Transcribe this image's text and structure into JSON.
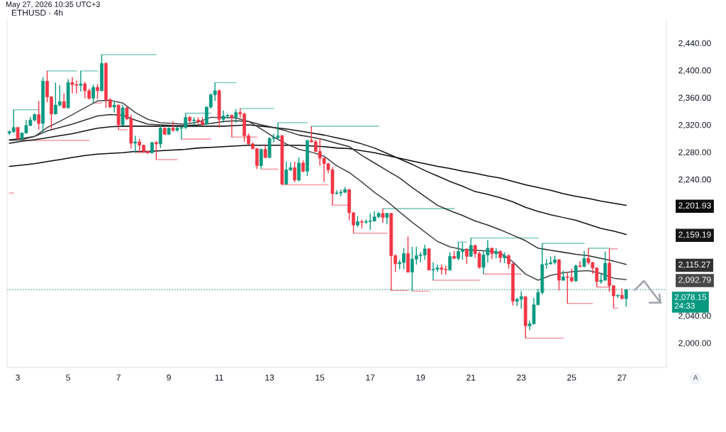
{
  "chart_data": {
    "type": "candlestick",
    "title": "ETHUSD · 4h",
    "annotations": [
      "May 27, 2026 10:35 UTC+3",
      "A"
    ],
    "xlim": [
      "2026-05-02T16:48",
      "2026-05-28T21:24"
    ],
    "ylim": [
      1964,
      2474
    ],
    "xticks": [
      {
        "value": "2026-05-03T03:00",
        "label": "3"
      },
      {
        "value": "2026-05-05T03:00",
        "label": "5"
      },
      {
        "value": "2026-05-07T03:00",
        "label": "7"
      },
      {
        "value": "2026-05-09T03:00",
        "label": "9"
      },
      {
        "value": "2026-05-11T03:00",
        "label": "11"
      },
      {
        "value": "2026-05-13T03:00",
        "label": "13"
      },
      {
        "value": "2026-05-15T03:00",
        "label": "15"
      },
      {
        "value": "2026-05-17T03:00",
        "label": "17"
      },
      {
        "value": "2026-05-19T03:00",
        "label": "19"
      },
      {
        "value": "2026-05-21T03:00",
        "label": "21"
      },
      {
        "value": "2026-05-23T03:00",
        "label": "23"
      },
      {
        "value": "2026-05-25T03:00",
        "label": "25"
      },
      {
        "value": "2026-05-27T03:00",
        "label": "27"
      }
    ],
    "yticks": [
      {
        "value": 2440,
        "label": "2,440.00"
      },
      {
        "value": 2400,
        "label": "2,400.00"
      },
      {
        "value": 2360,
        "label": "2,360.00"
      },
      {
        "value": 2320,
        "label": "2,320.00"
      },
      {
        "value": 2280,
        "label": "2,280.00"
      },
      {
        "value": 2240,
        "label": "2,240.00"
      },
      {
        "value": 2201.93,
        "label": "2,201.93"
      },
      {
        "value": 2159.19,
        "label": "2,159.19"
      },
      {
        "value": 2115.27,
        "label": "2,115.27"
      },
      {
        "value": 2092.79,
        "label": "2,092.79"
      },
      {
        "value": 2040,
        "label": "2,040.00"
      },
      {
        "value": 2000,
        "label": "2,000.00"
      }
    ],
    "x": [
      "2026-05-02T19:00",
      "2026-05-03T07:00",
      "2026-05-03T19:00",
      "2026-05-04T07:00",
      "2026-05-04T19:00",
      "2026-05-05T07:00",
      "2026-05-05T19:00",
      "2026-05-06T07:00",
      "2026-05-06T19:00",
      "2026-05-07T07:00",
      "2026-05-07T19:00",
      "2026-05-08T07:00",
      "2026-05-08T19:00",
      "2026-05-09T07:00",
      "2026-05-09T19:00",
      "2026-05-10T07:00",
      "2026-05-10T19:00",
      "2026-05-11T07:00",
      "2026-05-11T19:00",
      "2026-05-12T07:00",
      "2026-05-12T19:00",
      "2026-05-13T07:00",
      "2026-05-13T19:00",
      "2026-05-14T07:00",
      "2026-05-14T19:00",
      "2026-05-15T07:00",
      "2026-05-15T19:00",
      "2026-05-16T07:00",
      "2026-05-16T19:00",
      "2026-05-17T07:00",
      "2026-05-17T19:00",
      "2026-05-18T07:00",
      "2026-05-18T19:00",
      "2026-05-19T07:00",
      "2026-05-19T19:00",
      "2026-05-20T07:00",
      "2026-05-20T19:00",
      "2026-05-21T07:00",
      "2026-05-21T19:00",
      "2026-05-22T07:00",
      "2026-05-22T19:00",
      "2026-05-23T07:00",
      "2026-05-23T19:00",
      "2026-05-24T07:00",
      "2026-05-24T19:00",
      "2026-05-25T07:00",
      "2026-05-25T19:00",
      "2026-05-26T07:00",
      "2026-05-26T19:00",
      "2026-05-27T07:00"
    ],
    "series": [
      {
        "type": "line",
        "color": "#84ccc0",
        "x": [
          "2026-05-02T23:00",
          "2026-05-03T23:00"
        ],
        "values": [
          2342,
          2342
        ]
      },
      {
        "type": "line",
        "color": "#84ccc0",
        "x": [
          "2026-05-04T07:00",
          "2026-05-05T11:00"
        ],
        "values": [
          2399,
          2399
        ]
      },
      {
        "type": "line",
        "color": "#84ccc0",
        "x": [
          "2026-05-05T15:00",
          "2026-05-06T07:00"
        ],
        "values": [
          2399,
          2399
        ]
      },
      {
        "type": "line",
        "color": "#84ccc0",
        "x": [
          "2026-05-06T11:00",
          "2026-05-08T15:00"
        ],
        "values": [
          2423,
          2423
        ]
      },
      {
        "type": "line",
        "color": "#84ccc0",
        "x": [
          "2026-05-09T19:00",
          "2026-05-10T19:00"
        ],
        "values": [
          2337,
          2337
        ]
      },
      {
        "type": "line",
        "color": "#84ccc0",
        "x": [
          "2026-05-10T23:00",
          "2026-05-11T19:00"
        ],
        "values": [
          2382,
          2382
        ]
      },
      {
        "type": "line",
        "color": "#84ccc0",
        "x": [
          "2026-05-11T23:00",
          "2026-05-13T07:00"
        ],
        "values": [
          2344,
          2344
        ]
      },
      {
        "type": "line",
        "color": "#84ccc0",
        "x": [
          "2026-05-13T11:00",
          "2026-05-14T15:00"
        ],
        "values": [
          2323,
          2323
        ]
      },
      {
        "type": "line",
        "color": "#84ccc0",
        "x": [
          "2026-05-14T19:00",
          "2026-05-17T11:00"
        ],
        "values": [
          2318,
          2318
        ]
      },
      {
        "type": "line",
        "color": "#84ccc0",
        "x": [
          "2026-05-17T15:00",
          "2026-05-20T11:00"
        ],
        "values": [
          2197,
          2197
        ]
      },
      {
        "type": "line",
        "color": "#84ccc0",
        "x": [
          "2026-05-20T15:00",
          "2026-05-20T23:00"
        ],
        "values": [
          2148,
          2148
        ]
      },
      {
        "type": "line",
        "color": "#84ccc0",
        "x": [
          "2026-05-21T03:00",
          "2026-05-23T19:00"
        ],
        "values": [
          2154,
          2154
        ]
      },
      {
        "type": "line",
        "color": "#84ccc0",
        "x": [
          "2026-05-23T23:00",
          "2026-05-25T15:00"
        ],
        "values": [
          2146,
          2146
        ]
      },
      {
        "type": "line",
        "color": "#84ccc0",
        "x": [
          "2026-05-25T19:00",
          "2026-05-26T15:00"
        ],
        "values": [
          2139,
          2139
        ]
      },
      {
        "type": "line",
        "color": "#f79aa2",
        "x": [
          "2026-05-02T19:00",
          "2026-05-02T23:00"
        ],
        "values": [
          2220,
          2220
        ]
      },
      {
        "type": "line",
        "color": "#f79aa2",
        "x": [
          "2026-05-03T07:00",
          "2026-05-05T23:00"
        ],
        "values": [
          2297,
          2297
        ]
      },
      {
        "type": "line",
        "color": "#f79aa2",
        "x": [
          "2026-05-06T03:00",
          "2026-05-06T11:00"
        ],
        "values": [
          2352,
          2352
        ]
      },
      {
        "type": "line",
        "color": "#f79aa2",
        "x": [
          "2026-05-07T03:00",
          "2026-05-07T11:00"
        ],
        "values": [
          2313,
          2313
        ]
      },
      {
        "type": "line",
        "color": "#f79aa2",
        "x": [
          "2026-05-07T19:00",
          "2026-05-08T11:00"
        ],
        "values": [
          2279,
          2279
        ]
      },
      {
        "type": "line",
        "color": "#f79aa2",
        "x": [
          "2026-05-08T15:00",
          "2026-05-09T11:00"
        ],
        "values": [
          2269,
          2269
        ]
      },
      {
        "type": "line",
        "color": "#f79aa2",
        "x": [
          "2026-05-09T15:00",
          "2026-05-10T19:00"
        ],
        "values": [
          2299,
          2299
        ]
      },
      {
        "type": "line",
        "color": "#f79aa2",
        "x": [
          "2026-05-11T15:00",
          "2026-05-12T15:00"
        ],
        "values": [
          2302,
          2302
        ]
      },
      {
        "type": "line",
        "color": "#f79aa2",
        "x": [
          "2026-05-12T19:00",
          "2026-05-13T11:00"
        ],
        "values": [
          2255,
          2255
        ]
      },
      {
        "type": "line",
        "color": "#f79aa2",
        "x": [
          "2026-05-13T15:00",
          "2026-05-15T11:00"
        ],
        "values": [
          2232,
          2232
        ]
      },
      {
        "type": "line",
        "color": "#f79aa2",
        "x": [
          "2026-05-15T15:00",
          "2026-05-16T07:00"
        ],
        "values": [
          2202,
          2202
        ]
      },
      {
        "type": "line",
        "color": "#f79aa2",
        "x": [
          "2026-05-16T11:00",
          "2026-05-17T19:00"
        ],
        "values": [
          2161,
          2161
        ]
      },
      {
        "type": "line",
        "color": "#f79aa2",
        "x": [
          "2026-05-17T23:00",
          "2026-05-18T15:00"
        ],
        "values": [
          2077,
          2077
        ]
      },
      {
        "type": "line",
        "color": "#f79aa2",
        "x": [
          "2026-05-18T19:00",
          "2026-05-19T11:00"
        ],
        "values": [
          2076,
          2076
        ]
      },
      {
        "type": "line",
        "color": "#f79aa2",
        "x": [
          "2026-05-19T15:00",
          "2026-05-21T11:00"
        ],
        "values": [
          2092,
          2092
        ]
      },
      {
        "type": "line",
        "color": "#f79aa2",
        "x": [
          "2026-05-21T15:00",
          "2026-05-23T03:00"
        ],
        "values": [
          2101,
          2101
        ]
      },
      {
        "type": "line",
        "color": "#f79aa2",
        "x": [
          "2026-05-23T07:00",
          "2026-05-24T19:00"
        ],
        "values": [
          2007,
          2007
        ]
      },
      {
        "type": "line",
        "color": "#f79aa2",
        "x": [
          "2026-05-24T23:00",
          "2026-05-25T23:00"
        ],
        "values": [
          2058,
          2058
        ]
      },
      {
        "type": "line",
        "color": "#f79aa2",
        "x": [
          "2026-05-26T03:00",
          "2026-05-26T15:00"
        ],
        "values": [
          2082,
          2082
        ]
      },
      {
        "type": "line",
        "color": "#f79aa2",
        "x": [
          "2026-05-26T15:00",
          "2026-05-26T23:00"
        ],
        "values": [
          2138,
          2138
        ]
      },
      {
        "type": "line",
        "color": "#f79aa2",
        "x": [
          "2026-05-26T19:00",
          "2026-05-26T23:00"
        ],
        "values": [
          2051,
          2051
        ]
      },
      {
        "type": "line",
        "color": "#0b0b0b",
        "values": [
          2259,
          2261,
          2263,
          2266,
          2269,
          2272,
          2275,
          2277,
          2278,
          2279,
          2281,
          2281,
          2282,
          2283,
          2284,
          2286,
          2287,
          2288,
          2289,
          2290,
          2290,
          2290,
          2290,
          2290,
          2289,
          2288,
          2286,
          2285,
          2282,
          2279,
          2275,
          2271,
          2267,
          2263,
          2259,
          2256,
          2252,
          2249,
          2245,
          2242,
          2237,
          2232,
          2228,
          2224,
          2219,
          2215,
          2212,
          2208,
          2205,
          2201.93
        ]
      },
      {
        "type": "line",
        "color": "#141414",
        "values": [
          2293,
          2296,
          2298,
          2301,
          2304,
          2307,
          2311,
          2315,
          2317,
          2318,
          2318,
          2318,
          2318,
          2318,
          2318,
          2318,
          2318,
          2318,
          2319,
          2320,
          2318,
          2316,
          2314,
          2311,
          2308,
          2305,
          2301,
          2297,
          2292,
          2286,
          2278,
          2270,
          2262,
          2253,
          2245,
          2237,
          2230,
          2222,
          2218,
          2213,
          2207,
          2199,
          2193,
          2188,
          2184,
          2180,
          2174,
          2168,
          2164,
          2159.19
        ]
      },
      {
        "type": "line",
        "color": "#303030",
        "values": [
          2298,
          2300,
          2303,
          2311,
          2316,
          2321,
          2327,
          2333,
          2335,
          2334,
          2327,
          2321,
          2320,
          2319,
          2319,
          2320,
          2322,
          2325,
          2326,
          2325,
          2320,
          2316,
          2311,
          2305,
          2302,
          2298,
          2293,
          2288,
          2275,
          2264,
          2253,
          2242,
          2228,
          2215,
          2202,
          2194,
          2187,
          2179,
          2173,
          2166,
          2158,
          2150,
          2139,
          2136,
          2133,
          2130,
          2128,
          2124,
          2120,
          2115.27
        ]
      },
      {
        "type": "line",
        "color": "#474747",
        "values": [
          2297,
          2298,
          2303,
          2316,
          2325,
          2335,
          2345,
          2355,
          2356,
          2352,
          2338,
          2328,
          2323,
          2322,
          2321,
          2324,
          2331,
          2331,
          2330,
          2325,
          2314,
          2302,
          2292,
          2284,
          2280,
          2274,
          2260,
          2250,
          2236,
          2221,
          2208,
          2192,
          2177,
          2163,
          2149,
          2141,
          2137,
          2136,
          2135,
          2132,
          2119,
          2101,
          2092,
          2099,
          2103,
          2105,
          2106,
          2102,
          2095,
          2092.79
        ]
      },
      {
        "x": [
          "2026-05-02T19:00",
          "2026-05-02T23:00",
          "2026-05-03T03:00",
          "2026-05-03T07:00",
          "2026-05-03T11:00",
          "2026-05-03T15:00",
          "2026-05-03T19:00",
          "2026-05-03T23:00",
          "2026-05-04T03:00",
          "2026-05-04T07:00",
          "2026-05-04T11:00",
          "2026-05-04T15:00",
          "2026-05-04T19:00",
          "2026-05-04T23:00",
          "2026-05-05T03:00",
          "2026-05-05T07:00",
          "2026-05-05T11:00",
          "2026-05-05T15:00",
          "2026-05-05T19:00",
          "2026-05-05T23:00",
          "2026-05-06T03:00",
          "2026-05-06T07:00",
          "2026-05-06T11:00",
          "2026-05-06T15:00",
          "2026-05-06T19:00",
          "2026-05-06T23:00",
          "2026-05-07T03:00",
          "2026-05-07T07:00",
          "2026-05-07T11:00",
          "2026-05-07T15:00",
          "2026-05-07T19:00",
          "2026-05-07T23:00",
          "2026-05-08T03:00",
          "2026-05-08T07:00",
          "2026-05-08T11:00",
          "2026-05-08T15:00",
          "2026-05-08T19:00",
          "2026-05-08T23:00",
          "2026-05-09T03:00",
          "2026-05-09T07:00",
          "2026-05-09T11:00",
          "2026-05-09T15:00",
          "2026-05-09T19:00",
          "2026-05-09T23:00",
          "2026-05-10T03:00",
          "2026-05-10T07:00",
          "2026-05-10T11:00",
          "2026-05-10T15:00",
          "2026-05-10T19:00",
          "2026-05-10T23:00",
          "2026-05-11T03:00",
          "2026-05-11T07:00",
          "2026-05-11T11:00",
          "2026-05-11T15:00",
          "2026-05-11T19:00",
          "2026-05-11T23:00",
          "2026-05-12T03:00",
          "2026-05-12T07:00",
          "2026-05-12T11:00",
          "2026-05-12T15:00",
          "2026-05-12T19:00",
          "2026-05-12T23:00",
          "2026-05-13T03:00",
          "2026-05-13T07:00",
          "2026-05-13T11:00",
          "2026-05-13T15:00",
          "2026-05-13T19:00",
          "2026-05-13T23:00",
          "2026-05-14T03:00",
          "2026-05-14T07:00",
          "2026-05-14T11:00",
          "2026-05-14T15:00",
          "2026-05-14T19:00",
          "2026-05-14T23:00",
          "2026-05-15T03:00",
          "2026-05-15T07:00",
          "2026-05-15T11:00",
          "2026-05-15T15:00",
          "2026-05-15T19:00",
          "2026-05-15T23:00",
          "2026-05-16T03:00",
          "2026-05-16T07:00",
          "2026-05-16T11:00",
          "2026-05-16T15:00",
          "2026-05-16T19:00",
          "2026-05-16T23:00",
          "2026-05-17T03:00",
          "2026-05-17T07:00",
          "2026-05-17T11:00",
          "2026-05-17T15:00",
          "2026-05-17T19:00",
          "2026-05-17T23:00",
          "2026-05-18T03:00",
          "2026-05-18T07:00",
          "2026-05-18T11:00",
          "2026-05-18T15:00",
          "2026-05-18T19:00",
          "2026-05-18T23:00",
          "2026-05-19T03:00",
          "2026-05-19T07:00",
          "2026-05-19T11:00",
          "2026-05-19T15:00",
          "2026-05-19T19:00",
          "2026-05-19T23:00",
          "2026-05-20T03:00",
          "2026-05-20T07:00",
          "2026-05-20T11:00",
          "2026-05-20T15:00",
          "2026-05-20T19:00",
          "2026-05-20T23:00",
          "2026-05-21T03:00",
          "2026-05-21T07:00",
          "2026-05-21T11:00",
          "2026-05-21T15:00",
          "2026-05-21T19:00",
          "2026-05-21T23:00",
          "2026-05-22T03:00",
          "2026-05-22T07:00",
          "2026-05-22T11:00",
          "2026-05-22T15:00",
          "2026-05-22T19:00",
          "2026-05-22T23:00",
          "2026-05-23T03:00",
          "2026-05-23T07:00",
          "2026-05-23T11:00",
          "2026-05-23T15:00",
          "2026-05-23T19:00",
          "2026-05-23T23:00",
          "2026-05-24T03:00",
          "2026-05-24T07:00",
          "2026-05-24T11:00",
          "2026-05-24T15:00",
          "2026-05-24T19:00",
          "2026-05-24T23:00",
          "2026-05-25T03:00",
          "2026-05-25T07:00",
          "2026-05-25T11:00",
          "2026-05-25T15:00",
          "2026-05-25T19:00",
          "2026-05-25T23:00",
          "2026-05-26T03:00",
          "2026-05-26T07:00",
          "2026-05-26T11:00",
          "2026-05-26T15:00",
          "2026-05-26T19:00",
          "2026-05-26T23:00",
          "2026-05-27T03:00",
          "2026-05-27T07:00"
        ],
        "ohlc": [
          [
            2308,
            2312,
            2305,
            2310
          ],
          [
            2310,
            2342,
            2308,
            2316
          ],
          [
            2316,
            2317,
            2298,
            2300
          ],
          [
            2300,
            2309,
            2297,
            2308
          ],
          [
            2308,
            2327,
            2307,
            2319
          ],
          [
            2319,
            2332,
            2318,
            2327
          ],
          [
            2327,
            2337,
            2325,
            2335
          ],
          [
            2335,
            2355,
            2313,
            2322
          ],
          [
            2322,
            2390,
            2308,
            2384
          ],
          [
            2384,
            2399,
            2353,
            2361
          ],
          [
            2361,
            2362,
            2314,
            2336
          ],
          [
            2336,
            2382,
            2335,
            2349
          ],
          [
            2349,
            2378,
            2347,
            2354
          ],
          [
            2354,
            2366,
            2344,
            2345
          ],
          [
            2345,
            2387,
            2344,
            2382
          ],
          [
            2382,
            2390,
            2366,
            2379
          ],
          [
            2379,
            2385,
            2366,
            2378
          ],
          [
            2378,
            2399,
            2369,
            2380
          ],
          [
            2380,
            2383,
            2359,
            2370
          ],
          [
            2370,
            2373,
            2357,
            2359
          ],
          [
            2359,
            2379,
            2352,
            2375
          ],
          [
            2375,
            2380,
            2358,
            2370
          ],
          [
            2370,
            2423,
            2369,
            2410
          ],
          [
            2410,
            2412,
            2345,
            2357
          ],
          [
            2357,
            2359,
            2345,
            2346
          ],
          [
            2346,
            2355,
            2338,
            2349
          ],
          [
            2349,
            2350,
            2313,
            2320
          ],
          [
            2320,
            2349,
            2319,
            2345
          ],
          [
            2345,
            2346,
            2327,
            2329
          ],
          [
            2329,
            2335,
            2285,
            2293
          ],
          [
            2293,
            2304,
            2279,
            2295
          ],
          [
            2295,
            2300,
            2280,
            2290
          ],
          [
            2290,
            2291,
            2279,
            2281
          ],
          [
            2281,
            2282,
            2278,
            2279
          ],
          [
            2279,
            2295,
            2278,
            2294
          ],
          [
            2294,
            2296,
            2269,
            2292
          ],
          [
            2292,
            2319,
            2286,
            2315
          ],
          [
            2315,
            2316,
            2305,
            2306
          ],
          [
            2306,
            2316,
            2305,
            2315
          ],
          [
            2315,
            2325,
            2310,
            2312
          ],
          [
            2312,
            2317,
            2310,
            2315
          ],
          [
            2315,
            2317,
            2299,
            2316
          ],
          [
            2316,
            2337,
            2314,
            2331
          ],
          [
            2331,
            2333,
            2323,
            2326
          ],
          [
            2326,
            2331,
            2319,
            2327
          ],
          [
            2327,
            2331,
            2321,
            2325
          ],
          [
            2325,
            2331,
            2319,
            2321
          ],
          [
            2321,
            2347,
            2320,
            2346
          ],
          [
            2346,
            2366,
            2344,
            2364
          ],
          [
            2364,
            2382,
            2355,
            2370
          ],
          [
            2370,
            2372,
            2316,
            2328
          ],
          [
            2328,
            2341,
            2323,
            2333
          ],
          [
            2333,
            2336,
            2329,
            2334
          ],
          [
            2334,
            2335,
            2302,
            2331
          ],
          [
            2331,
            2343,
            2323,
            2338
          ],
          [
            2338,
            2344,
            2330,
            2336
          ],
          [
            2336,
            2338,
            2295,
            2304
          ],
          [
            2304,
            2307,
            2291,
            2292
          ],
          [
            2292,
            2294,
            2284,
            2285
          ],
          [
            2285,
            2286,
            2255,
            2260
          ],
          [
            2260,
            2285,
            2255,
            2284
          ],
          [
            2284,
            2290,
            2271,
            2272
          ],
          [
            2272,
            2302,
            2271,
            2300
          ],
          [
            2300,
            2307,
            2294,
            2301
          ],
          [
            2301,
            2323,
            2298,
            2304
          ],
          [
            2304,
            2305,
            2232,
            2233
          ],
          [
            2233,
            2266,
            2232,
            2254
          ],
          [
            2254,
            2265,
            2252,
            2257
          ],
          [
            2257,
            2266,
            2236,
            2239
          ],
          [
            2239,
            2272,
            2237,
            2264
          ],
          [
            2264,
            2268,
            2250,
            2252
          ],
          [
            2252,
            2298,
            2245,
            2297
          ],
          [
            2297,
            2318,
            2294,
            2295
          ],
          [
            2295,
            2298,
            2280,
            2281
          ],
          [
            2281,
            2300,
            2260,
            2271
          ],
          [
            2271,
            2272,
            2236,
            2263
          ],
          [
            2263,
            2264,
            2249,
            2254
          ],
          [
            2254,
            2258,
            2202,
            2219
          ],
          [
            2219,
            2224,
            2218,
            2220
          ],
          [
            2220,
            2225,
            2215,
            2221
          ],
          [
            2221,
            2229,
            2220,
            2225
          ],
          [
            2225,
            2226,
            2180,
            2191
          ],
          [
            2191,
            2192,
            2161,
            2173
          ],
          [
            2173,
            2186,
            2170,
            2178
          ],
          [
            2178,
            2181,
            2168,
            2177
          ],
          [
            2177,
            2181,
            2175,
            2178
          ],
          [
            2178,
            2190,
            2166,
            2179
          ],
          [
            2179,
            2193,
            2178,
            2185
          ],
          [
            2185,
            2192,
            2183,
            2190
          ],
          [
            2190,
            2197,
            2176,
            2184
          ],
          [
            2184,
            2191,
            2174,
            2190
          ],
          [
            2190,
            2191,
            2077,
            2128
          ],
          [
            2128,
            2130,
            2104,
            2116
          ],
          [
            2116,
            2122,
            2108,
            2118
          ],
          [
            2118,
            2139,
            2108,
            2131
          ],
          [
            2131,
            2156,
            2103,
            2104
          ],
          [
            2104,
            2141,
            2076,
            2123
          ],
          [
            2123,
            2141,
            2115,
            2128
          ],
          [
            2128,
            2133,
            2118,
            2129
          ],
          [
            2129,
            2144,
            2122,
            2138
          ],
          [
            2138,
            2139,
            2106,
            2107
          ],
          [
            2107,
            2118,
            2092,
            2108
          ],
          [
            2108,
            2115,
            2104,
            2110
          ],
          [
            2110,
            2115,
            2100,
            2108
          ],
          [
            2108,
            2113,
            2100,
            2107
          ],
          [
            2107,
            2133,
            2106,
            2127
          ],
          [
            2127,
            2135,
            2123,
            2124
          ],
          [
            2124,
            2148,
            2121,
            2134
          ],
          [
            2134,
            2147,
            2122,
            2137
          ],
          [
            2137,
            2139,
            2116,
            2127
          ],
          [
            2127,
            2154,
            2126,
            2143
          ],
          [
            2143,
            2144,
            2125,
            2131
          ],
          [
            2131,
            2134,
            2109,
            2111
          ],
          [
            2111,
            2135,
            2101,
            2129
          ],
          [
            2129,
            2151,
            2118,
            2139
          ],
          [
            2139,
            2140,
            2123,
            2131
          ],
          [
            2131,
            2139,
            2124,
            2134
          ],
          [
            2134,
            2136,
            2118,
            2125
          ],
          [
            2125,
            2133,
            2117,
            2128
          ],
          [
            2128,
            2130,
            2109,
            2116
          ],
          [
            2116,
            2117,
            2055,
            2061
          ],
          [
            2061,
            2066,
            2054,
            2064
          ],
          [
            2064,
            2076,
            2050,
            2068
          ],
          [
            2068,
            2068,
            2007,
            2025
          ],
          [
            2025,
            2033,
            2019,
            2028
          ],
          [
            2028,
            2066,
            2027,
            2056
          ],
          [
            2056,
            2079,
            2055,
            2074
          ],
          [
            2074,
            2146,
            2071,
            2115
          ],
          [
            2115,
            2123,
            2109,
            2116
          ],
          [
            2116,
            2127,
            2115,
            2118
          ],
          [
            2118,
            2128,
            2115,
            2122
          ],
          [
            2122,
            2123,
            2077,
            2092
          ],
          [
            2092,
            2106,
            2091,
            2097
          ],
          [
            2097,
            2104,
            2058,
            2096
          ],
          [
            2096,
            2109,
            2089,
            2091
          ],
          [
            2091,
            2115,
            2090,
            2113
          ],
          [
            2113,
            2120,
            2111,
            2112
          ],
          [
            2112,
            2135,
            2111,
            2124
          ],
          [
            2124,
            2139,
            2115,
            2118
          ],
          [
            2118,
            2119,
            2101,
            2110
          ],
          [
            2110,
            2111,
            2082,
            2090
          ],
          [
            2090,
            2102,
            2087,
            2092
          ],
          [
            2092,
            2134,
            2091,
            2117
          ],
          [
            2117,
            2138,
            2075,
            2084
          ],
          [
            2084,
            2084,
            2051,
            2069
          ],
          [
            2069,
            2071,
            2066,
            2070
          ],
          [
            2070,
            2080,
            2064,
            2065
          ],
          [
            2065,
            2079,
            2053,
            2078.15
          ]
        ],
        "colors": [
          "#089981",
          "#089981",
          "#f23645",
          "#089981",
          "#089981",
          "#089981",
          "#089981",
          "#f23645",
          "#089981",
          "#f23645",
          "#f23645",
          "#089981",
          "#089981",
          "#f23645",
          "#089981",
          "#f23645",
          "#f23645",
          "#089981",
          "#f23645",
          "#f23645",
          "#089981",
          "#f23645",
          "#089981",
          "#f23645",
          "#f23645",
          "#089981",
          "#f23645",
          "#089981",
          "#f23645",
          "#f23645",
          "#089981",
          "#f23645",
          "#f23645",
          "#f23645",
          "#089981",
          "#f23645",
          "#089981",
          "#f23645",
          "#089981",
          "#f23645",
          "#089981",
          "#089981",
          "#089981",
          "#f23645",
          "#089981",
          "#f23645",
          "#f23645",
          "#089981",
          "#089981",
          "#089981",
          "#f23645",
          "#089981",
          "#089981",
          "#f23645",
          "#089981",
          "#f23645",
          "#f23645",
          "#f23645",
          "#f23645",
          "#f23645",
          "#089981",
          "#f23645",
          "#089981",
          "#089981",
          "#089981",
          "#f23645",
          "#089981",
          "#089981",
          "#f23645",
          "#089981",
          "#f23645",
          "#089981",
          "#f23645",
          "#f23645",
          "#f23645",
          "#f23645",
          "#f23645",
          "#f23645",
          "#089981",
          "#089981",
          "#089981",
          "#f23645",
          "#f23645",
          "#089981",
          "#f23645",
          "#089981",
          "#089981",
          "#089981",
          "#089981",
          "#f23645",
          "#089981",
          "#f23645",
          "#f23645",
          "#089981",
          "#089981",
          "#f23645",
          "#089981",
          "#089981",
          "#089981",
          "#089981",
          "#f23645",
          "#089981",
          "#089981",
          "#f23645",
          "#f23645",
          "#089981",
          "#f23645",
          "#089981",
          "#089981",
          "#f23645",
          "#089981",
          "#f23645",
          "#f23645",
          "#089981",
          "#089981",
          "#f23645",
          "#089981",
          "#f23645",
          "#089981",
          "#f23645",
          "#f23645",
          "#089981",
          "#089981",
          "#f23645",
          "#089981",
          "#089981",
          "#089981",
          "#089981",
          "#089981",
          "#089981",
          "#089981",
          "#f23645",
          "#089981",
          "#f23645",
          "#f23645",
          "#089981",
          "#f23645",
          "#089981",
          "#f23645",
          "#f23645",
          "#f23645",
          "#089981",
          "#089981",
          "#f23645",
          "#f23645",
          "#089981",
          "#f23645",
          "#089981"
        ]
      }
    ],
    "ref_lines": [
      {
        "axis": "y",
        "value": 2078.15,
        "label": "2,078.15\n24:33",
        "color": "#089981",
        "line_style": "dotted"
      }
    ]
  }
}
